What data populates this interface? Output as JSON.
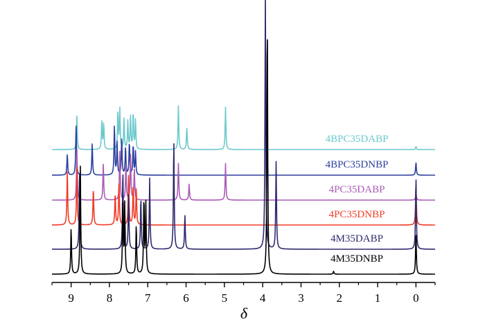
{
  "chart_data": {
    "type": "line",
    "title": "",
    "xlabel": "δ",
    "ylabel": "",
    "xlim": [
      9.5,
      -0.5
    ],
    "x_reversed": true,
    "x_ticks": [
      9,
      8,
      7,
      6,
      5,
      4,
      3,
      2,
      1,
      0
    ],
    "grid": false,
    "legend": "labels above each trace, right side",
    "series": [
      {
        "name": "4BPC35DABP",
        "color": "#6cc9cc",
        "peaks": [
          {
            "x": 8.85,
            "h": 0.58
          },
          {
            "x": 8.2,
            "h": 0.48
          },
          {
            "x": 8.15,
            "h": 0.45
          },
          {
            "x": 7.78,
            "h": 0.62
          },
          {
            "x": 7.73,
            "h": 0.71
          },
          {
            "x": 7.62,
            "h": 0.52
          },
          {
            "x": 7.52,
            "h": 0.48
          },
          {
            "x": 7.45,
            "h": 0.57
          },
          {
            "x": 7.38,
            "h": 0.63
          },
          {
            "x": 7.32,
            "h": 0.5
          },
          {
            "x": 6.2,
            "h": 0.75
          },
          {
            "x": 5.98,
            "h": 0.38
          },
          {
            "x": 4.97,
            "h": 0.73
          },
          {
            "x": 0.0,
            "h": 0.05
          }
        ]
      },
      {
        "name": "4BPC35DNBP",
        "color": "#2b3f9e",
        "peaks": [
          {
            "x": 9.1,
            "h": 0.36
          },
          {
            "x": 8.87,
            "h": 0.89
          },
          {
            "x": 8.45,
            "h": 0.54
          },
          {
            "x": 7.87,
            "h": 0.86
          },
          {
            "x": 7.8,
            "h": 0.55
          },
          {
            "x": 7.68,
            "h": 0.63
          },
          {
            "x": 7.58,
            "h": 0.48
          },
          {
            "x": 7.48,
            "h": 0.56
          },
          {
            "x": 7.38,
            "h": 0.52
          },
          {
            "x": 7.32,
            "h": 0.4
          },
          {
            "x": 0.0,
            "h": 0.22
          }
        ]
      },
      {
        "name": "4PC35DABP",
        "color": "#a85bb5",
        "peaks": [
          {
            "x": 8.85,
            "h": 0.88
          },
          {
            "x": 8.16,
            "h": 0.63
          },
          {
            "x": 7.73,
            "h": 0.86
          },
          {
            "x": 7.57,
            "h": 0.63
          },
          {
            "x": 7.45,
            "h": 0.8
          },
          {
            "x": 7.35,
            "h": 0.53
          },
          {
            "x": 6.2,
            "h": 0.63
          },
          {
            "x": 5.92,
            "h": 0.27
          },
          {
            "x": 4.97,
            "h": 0.63
          },
          {
            "x": 0.0,
            "h": 0.12
          }
        ]
      },
      {
        "name": "4PC35DNBP",
        "color": "#f03c28",
        "peaks": [
          {
            "x": 9.1,
            "h": 0.94
          },
          {
            "x": 8.85,
            "h": 1.0
          },
          {
            "x": 8.42,
            "h": 0.64
          },
          {
            "x": 7.85,
            "h": 0.55
          },
          {
            "x": 7.75,
            "h": 0.78
          },
          {
            "x": 7.5,
            "h": 0.86
          },
          {
            "x": 7.38,
            "h": 0.7
          },
          {
            "x": 7.3,
            "h": 0.64
          },
          {
            "x": 0.0,
            "h": 0.72
          }
        ]
      },
      {
        "name": "4M35DABP",
        "color": "#2e2a6e",
        "peaks": [
          {
            "x": 8.78,
            "h": 1.4
          },
          {
            "x": 7.65,
            "h": 1.38
          },
          {
            "x": 7.5,
            "h": 0.95
          },
          {
            "x": 7.18,
            "h": 0.9
          },
          {
            "x": 6.95,
            "h": 1.22
          },
          {
            "x": 6.32,
            "h": 1.9
          },
          {
            "x": 6.03,
            "h": 0.59
          },
          {
            "x": 3.93,
            "h": 4.5
          },
          {
            "x": 3.65,
            "h": 1.5
          },
          {
            "x": 0.0,
            "h": 1.25
          }
        ]
      },
      {
        "name": "4M35DNBP",
        "color": "#000000",
        "peaks": [
          {
            "x": 9.0,
            "h": 0.8
          },
          {
            "x": 8.76,
            "h": 1.88
          },
          {
            "x": 7.65,
            "h": 1.25
          },
          {
            "x": 7.6,
            "h": 1.2
          },
          {
            "x": 7.3,
            "h": 0.85
          },
          {
            "x": 7.1,
            "h": 1.3
          },
          {
            "x": 7.05,
            "h": 1.2
          },
          {
            "x": 3.88,
            "h": 4.45
          },
          {
            "x": 2.15,
            "h": 0.05
          },
          {
            "x": 0.0,
            "h": 0.7
          }
        ]
      }
    ]
  }
}
